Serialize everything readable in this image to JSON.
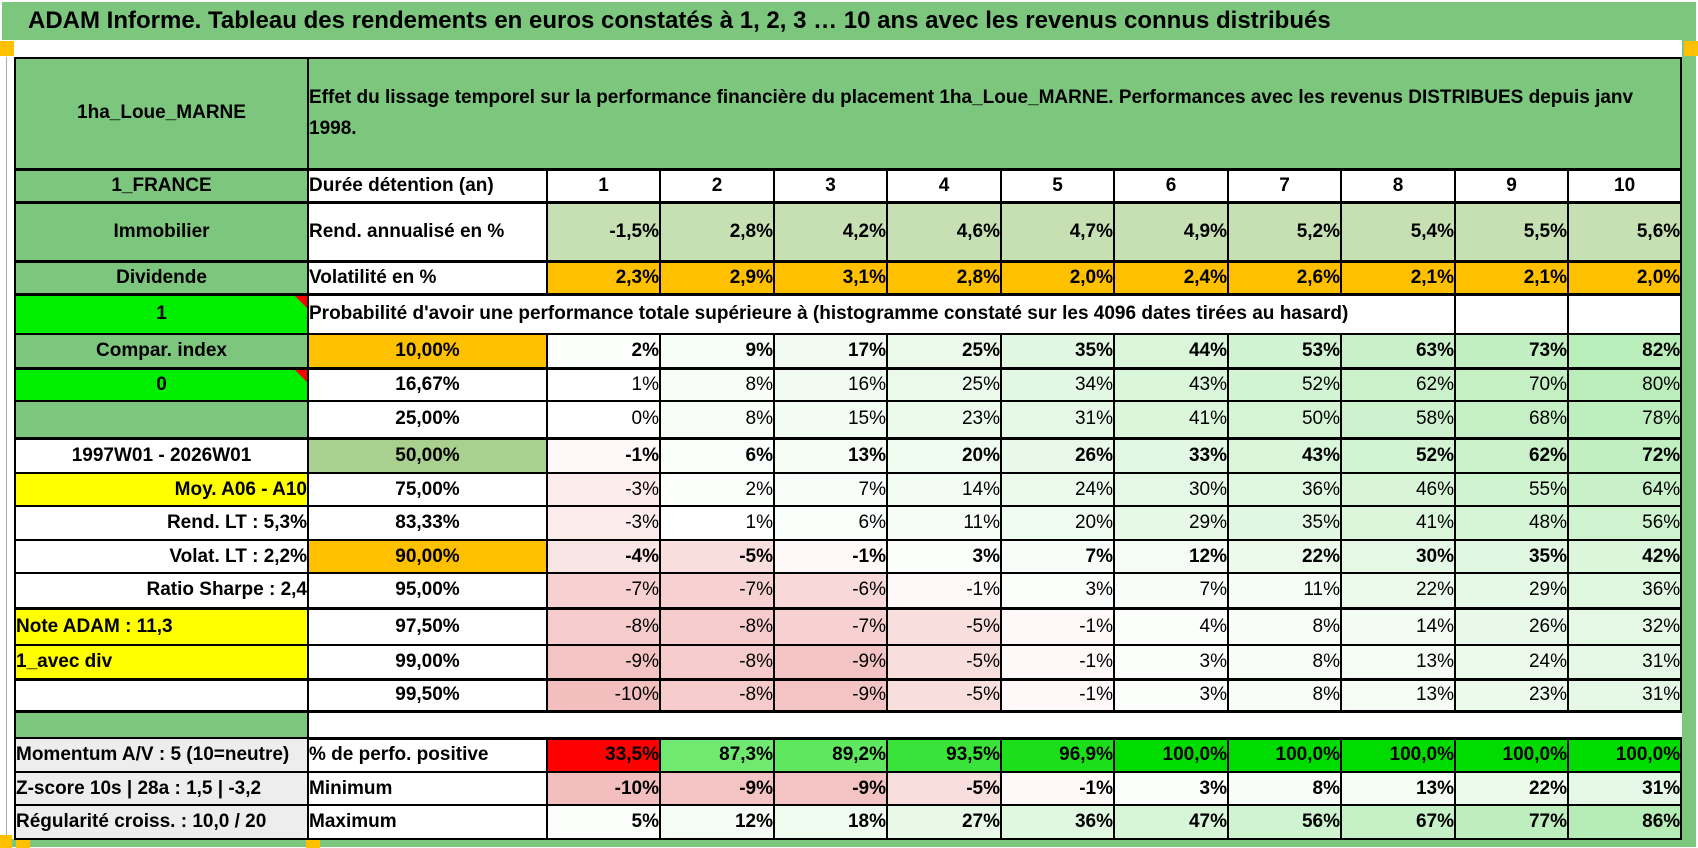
{
  "title": "ADAM Informe. Tableau des rendements en euros constatés à 1, 2, 3 … 10 ans avec les revenus connus distribués",
  "colors": {
    "band_green": "#7CC67E",
    "bright_green": "#00EF00",
    "accent_orange": "#FFC000",
    "highlight_yellow": "#FFFF00",
    "alert_red": "#FF0000",
    "row50_green": "#A9D08E",
    "rend_row_green": "#C6E0B4",
    "perfo_full_green": "#00DC00",
    "summary_gray": "#EDEDED"
  },
  "sheet": {
    "asset_name": "1ha_Loue_MARNE",
    "header_note": "Effet du lissage temporel sur la performance financière du placement 1ha_Loue_MARNE. Performances avec les revenus DISTRIBUES depuis janv 1998.",
    "prob_header": "Probabilité d'avoir une performance totale supérieure à (histogramme constaté sur les 4096 dates tirées au hasard)",
    "rows": [
      {
        "id": "header",
        "type": "header"
      },
      {
        "id": "durations",
        "left": {
          "text": "1_FRANCE",
          "style": "green"
        },
        "label": {
          "text": "Durée détention (an)",
          "style": "plain-left"
        },
        "cells": [
          "1",
          "2",
          "3",
          "4",
          "5",
          "6",
          "7",
          "8",
          "9",
          "10"
        ],
        "fill": "none",
        "bold": true,
        "center": true
      },
      {
        "id": "rend",
        "left": {
          "text": "Immobilier",
          "style": "green"
        },
        "label": {
          "text": "Rend. annualisé en %",
          "style": "plain-left"
        },
        "cells": [
          "-1,5%",
          "2,8%",
          "4,2%",
          "4,6%",
          "4,7%",
          "4,9%",
          "5,2%",
          "5,4%",
          "5,5%",
          "5,6%"
        ],
        "fill": "#C6E0B4",
        "bold": true
      },
      {
        "id": "volat",
        "left": {
          "text": "Dividende",
          "style": "green"
        },
        "label": {
          "text": "Volatilité en %",
          "style": "plain-left"
        },
        "cells": [
          "2,3%",
          "2,9%",
          "3,1%",
          "2,8%",
          "2,0%",
          "2,4%",
          "2,6%",
          "2,1%",
          "2,1%",
          "2,0%"
        ],
        "fill": "#FFC000",
        "bold": true
      },
      {
        "id": "prob",
        "type": "prob",
        "left": {
          "text": "1",
          "style": "bright",
          "comment": true
        }
      },
      {
        "id": "p10",
        "left": {
          "text": "Compar. index",
          "style": "green"
        },
        "label": {
          "text": "10,00%",
          "style": "orange"
        },
        "cells": [
          "2%",
          "9%",
          "17%",
          "25%",
          "35%",
          "44%",
          "53%",
          "63%",
          "73%",
          "82%"
        ],
        "fill": "std",
        "bold": true
      },
      {
        "id": "p16",
        "left": {
          "text": "0",
          "style": "bright",
          "comment": true
        },
        "label": {
          "text": "16,67%",
          "style": "plain"
        },
        "cells": [
          "1%",
          "8%",
          "16%",
          "25%",
          "34%",
          "43%",
          "52%",
          "62%",
          "70%",
          "80%"
        ],
        "fill": "std"
      },
      {
        "id": "p25",
        "left": {
          "text": "",
          "style": "green"
        },
        "label": {
          "text": "25,00%",
          "style": "plain"
        },
        "cells": [
          "0%",
          "8%",
          "15%",
          "23%",
          "31%",
          "41%",
          "50%",
          "58%",
          "68%",
          "78%"
        ],
        "fill": "std"
      },
      {
        "id": "p50",
        "left": {
          "text": "1997W01 - 2026W01",
          "style": "daterange"
        },
        "label": {
          "text": "50,00%",
          "style": "g50"
        },
        "cells": [
          "-1%",
          "6%",
          "13%",
          "20%",
          "26%",
          "33%",
          "43%",
          "52%",
          "62%",
          "72%"
        ],
        "fill": "std",
        "bold": true,
        "big": true
      },
      {
        "id": "p75",
        "left": {
          "text": "Moy. A06 - A10",
          "style": "yellowR"
        },
        "label": {
          "text": "75,00%",
          "style": "plain"
        },
        "cells": [
          "-3%",
          "2%",
          "7%",
          "14%",
          "24%",
          "30%",
          "36%",
          "46%",
          "55%",
          "64%"
        ],
        "fill": "std"
      },
      {
        "id": "p83",
        "left": {
          "text": "Rend. LT :   5,3%",
          "style": "redR"
        },
        "label": {
          "text": "83,33%",
          "style": "plain"
        },
        "cells": [
          "-3%",
          "1%",
          "6%",
          "11%",
          "20%",
          "29%",
          "35%",
          "41%",
          "48%",
          "56%"
        ],
        "fill": "std"
      },
      {
        "id": "p90",
        "left": {
          "text": "Volat. LT :   2,2%",
          "style": "redR"
        },
        "label": {
          "text": "90,00%",
          "style": "orange"
        },
        "cells": [
          "-4%",
          "-5%",
          "-1%",
          "3%",
          "7%",
          "12%",
          "22%",
          "30%",
          "35%",
          "42%"
        ],
        "fill": "std",
        "bold": true
      },
      {
        "id": "p95",
        "left": {
          "text": "Ratio Sharpe :   2,4",
          "style": "redR"
        },
        "label": {
          "text": "95,00%",
          "style": "plain"
        },
        "cells": [
          "-7%",
          "-7%",
          "-6%",
          "-1%",
          "3%",
          "7%",
          "11%",
          "22%",
          "29%",
          "36%"
        ],
        "fill": "std"
      },
      {
        "id": "p975",
        "left": {
          "text": "Note ADAM : 11,3",
          "style": "yellowL"
        },
        "label": {
          "text": "97,50%",
          "style": "plain"
        },
        "cells": [
          "-8%",
          "-8%",
          "-7%",
          "-5%",
          "-1%",
          "4%",
          "8%",
          "14%",
          "26%",
          "32%"
        ],
        "fill": "std"
      },
      {
        "id": "p99",
        "left": {
          "text": "1_avec div",
          "style": "yellowL"
        },
        "label": {
          "text": "99,00%",
          "style": "plain"
        },
        "cells": [
          "-9%",
          "-8%",
          "-9%",
          "-5%",
          "-1%",
          "3%",
          "8%",
          "13%",
          "24%",
          "31%"
        ],
        "fill": "std"
      },
      {
        "id": "p995",
        "left": {
          "text": "",
          "style": "white"
        },
        "label": {
          "text": "99,50%",
          "style": "plain"
        },
        "cells": [
          "-10%",
          "-8%",
          "-9%",
          "-5%",
          "-1%",
          "3%",
          "8%",
          "13%",
          "23%",
          "31%"
        ],
        "fill": "std"
      },
      {
        "id": "sep",
        "type": "sep"
      },
      {
        "id": "perfo",
        "left": {
          "text": "Momentum A/V : 5 (10=neutre)",
          "style": "gray"
        },
        "label": {
          "text": "% de perfo. positive",
          "style": "summary"
        },
        "cells": [
          "33,5%",
          "87,3%",
          "89,2%",
          "93,5%",
          "96,9%",
          "100,0%",
          "100,0%",
          "100,0%",
          "100,0%",
          "100,0%"
        ],
        "fill": "perfo",
        "bold": true
      },
      {
        "id": "min",
        "left": {
          "text": "Z-score 10s | 28a : 1,5 | -3,2",
          "style": "gray"
        },
        "label": {
          "text": "Minimum",
          "style": "summary"
        },
        "cells": [
          "-10%",
          "-9%",
          "-9%",
          "-5%",
          "-1%",
          "3%",
          "8%",
          "13%",
          "22%",
          "31%"
        ],
        "fill": "std",
        "bold": true
      },
      {
        "id": "max",
        "left": {
          "text": "Régularité croiss. : 10,0 / 20",
          "style": "gray"
        },
        "label": {
          "text": "Maximum",
          "style": "summary"
        },
        "cells": [
          "5%",
          "12%",
          "18%",
          "27%",
          "36%",
          "47%",
          "56%",
          "67%",
          "77%",
          "86%"
        ],
        "fill": "std",
        "bold": true
      }
    ]
  }
}
